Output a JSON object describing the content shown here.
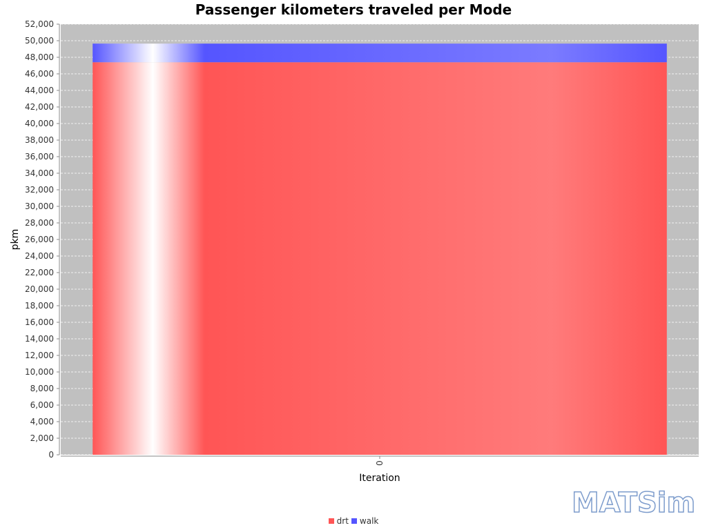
{
  "chart_data": {
    "type": "bar",
    "stacked": true,
    "title": "Passenger kilometers traveled per Mode",
    "xlabel": "Iteration",
    "ylabel": "pkm",
    "categories": [
      "0"
    ],
    "series": [
      {
        "name": "drt",
        "values": [
          47400
        ],
        "color": "#ff5555"
      },
      {
        "name": "walk",
        "values": [
          2250
        ],
        "color": "#5555ff"
      }
    ],
    "ylim": [
      0,
      52000
    ],
    "ytick_step": 2000,
    "grid": true,
    "legend_position": "bottom",
    "plot_background": "#c0c0c0"
  },
  "logo": {
    "text": "MATSim"
  }
}
